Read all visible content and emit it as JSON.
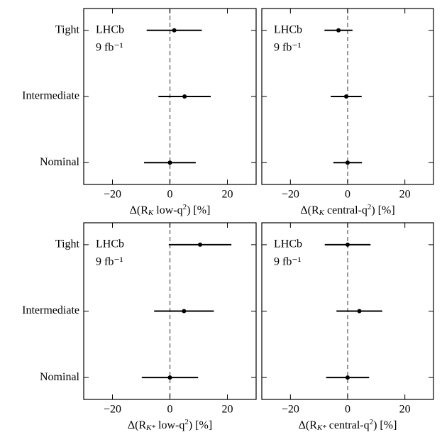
{
  "chart_data": [
    {
      "type": "errorbar",
      "categories": [
        "Nominal",
        "Intermediate",
        "Tight"
      ],
      "values": [
        0,
        5.1,
        1.5
      ],
      "errors": [
        9,
        9.1,
        9.6
      ],
      "color": "#000000",
      "xlim": [
        -30,
        30
      ],
      "xticks": [
        {
          "value": -20,
          "label": "−20"
        },
        0,
        20
      ],
      "ylim": [
        -0.33,
        2.33
      ],
      "ytick_labels": true,
      "xlabel": [
        {
          "text": "Δ(R"
        },
        {
          "text": "K",
          "baseline": "sub"
        },
        {
          "text": " low-q"
        },
        {
          "text": "2",
          "baseline": "sup"
        },
        {
          "text": ") [%]"
        }
      ],
      "annotation": [
        "LHCb",
        "9 fb⁻¹"
      ],
      "reference_line": 0,
      "reference_color": "#808080"
    },
    {
      "type": "errorbar",
      "categories": [
        "Nominal",
        "Intermediate",
        "Tight"
      ],
      "values": [
        0,
        -0.5,
        -3.2
      ],
      "errors": [
        5,
        5.4,
        4.9
      ],
      "color": "#000000",
      "xlim": [
        -30,
        30
      ],
      "xticks": [
        {
          "value": -20,
          "label": "−20"
        },
        0,
        20
      ],
      "ylim": [
        -0.33,
        2.33
      ],
      "ytick_labels": false,
      "xlabel": [
        {
          "text": "Δ(R"
        },
        {
          "text": "K",
          "baseline": "sub"
        },
        {
          "text": " central-q"
        },
        {
          "text": "2",
          "baseline": "sup"
        },
        {
          "text": ") [%]"
        }
      ],
      "annotation": [
        "LHCb",
        "9 fb⁻¹"
      ],
      "reference_line": 0,
      "reference_color": "#808080"
    },
    {
      "type": "errorbar",
      "categories": [
        "Nominal",
        "Intermediate",
        "Tight"
      ],
      "values": [
        0,
        4.9,
        10.5
      ],
      "errors": [
        9.8,
        10.4,
        10.9
      ],
      "color": "#000000",
      "xlim": [
        -30,
        30
      ],
      "xticks": [
        {
          "value": -20,
          "label": "−20"
        },
        0,
        20
      ],
      "ylim": [
        -0.33,
        2.33
      ],
      "ytick_labels": true,
      "xlabel": [
        {
          "text": "Δ(R"
        },
        {
          "text": "K*",
          "baseline": "sub"
        },
        {
          "text": " low-q"
        },
        {
          "text": "2",
          "baseline": "sup"
        },
        {
          "text": ") [%]"
        }
      ],
      "annotation": [
        "LHCb",
        "9 fb⁻¹"
      ],
      "reference_line": 0,
      "reference_color": "#808080"
    },
    {
      "type": "errorbar",
      "categories": [
        "Nominal",
        "Intermediate",
        "Tight"
      ],
      "values": [
        0,
        4.1,
        0
      ],
      "errors": [
        7.5,
        8,
        8
      ],
      "color": "#000000",
      "xlim": [
        -30,
        30
      ],
      "xticks": [
        {
          "value": -20,
          "label": "−20"
        },
        0,
        20
      ],
      "ylim": [
        -0.33,
        2.33
      ],
      "ytick_labels": false,
      "xlabel": [
        {
          "text": "Δ(R"
        },
        {
          "text": "K*",
          "baseline": "sub"
        },
        {
          "text": " central-q"
        },
        {
          "text": "2",
          "baseline": "sup"
        },
        {
          "text": ") [%]"
        }
      ],
      "annotation": [
        "LHCb",
        "9 fb⁻¹"
      ],
      "reference_line": 0,
      "reference_color": "#808080"
    }
  ]
}
